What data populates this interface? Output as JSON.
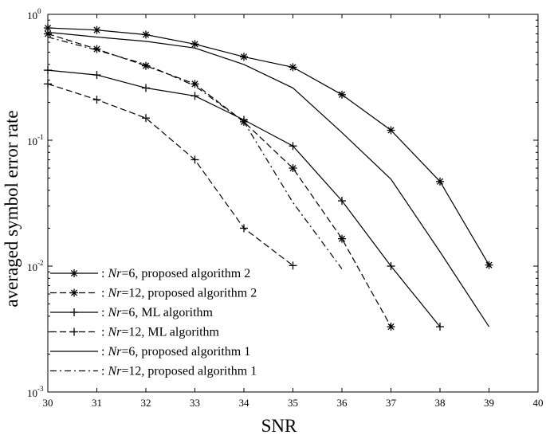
{
  "chart_data": {
    "type": "line",
    "title": "",
    "xlabel": "SNR",
    "ylabel": "averaged symbol error rate",
    "xlim": [
      30,
      40
    ],
    "ylim": [
      0.001,
      1
    ],
    "yscale": "log",
    "x_ticks": [
      "30",
      "31",
      "32",
      "33",
      "34",
      "35",
      "36",
      "37",
      "38",
      "39",
      "40"
    ],
    "y_ticks": [
      {
        "base": "10",
        "exp": "0",
        "value": 1
      },
      {
        "base": "10",
        "exp": "-1",
        "value": 0.1
      },
      {
        "base": "10",
        "exp": "-2",
        "value": 0.01
      },
      {
        "base": "10",
        "exp": "-3",
        "value": 0.001
      }
    ],
    "grid": false,
    "legend_position": "bottom-left",
    "series": [
      {
        "legend_prefix": ": ",
        "legend_italic": "Nr",
        "legend_suffix": "=6, proposed algorithm 2",
        "line_style": "solid",
        "marker": "asterisk",
        "color": "#000000",
        "x": [
          30,
          31,
          32,
          33,
          34,
          35,
          36,
          37,
          38,
          39
        ],
        "values": [
          0.78,
          0.75,
          0.69,
          0.58,
          0.46,
          0.38,
          0.23,
          0.12,
          0.047,
          0.0102
        ]
      },
      {
        "legend_prefix": ": ",
        "legend_italic": "Nr",
        "legend_suffix": "=12, proposed algorithm 2",
        "line_style": "dashed",
        "marker": "asterisk",
        "color": "#000000",
        "x": [
          30,
          31,
          32,
          33,
          34,
          35,
          36,
          37
        ],
        "values": [
          0.7,
          0.53,
          0.39,
          0.28,
          0.14,
          0.06,
          0.0165,
          0.0033
        ]
      },
      {
        "legend_prefix": ": ",
        "legend_italic": "Nr",
        "legend_suffix": "=6, ML algorithm",
        "line_style": "solid",
        "marker": "plus",
        "color": "#000000",
        "x": [
          30,
          31,
          32,
          33,
          34,
          35,
          36,
          37,
          38
        ],
        "values": [
          0.36,
          0.33,
          0.26,
          0.225,
          0.145,
          0.09,
          0.033,
          0.01,
          0.0033
        ]
      },
      {
        "legend_prefix": ": ",
        "legend_italic": "Nr",
        "legend_suffix": "=12, ML algorithm",
        "line_style": "dashed",
        "marker": "plus",
        "color": "#000000",
        "x": [
          30,
          31,
          32,
          33,
          34,
          35
        ],
        "values": [
          0.28,
          0.21,
          0.15,
          0.07,
          0.02,
          0.0101
        ]
      },
      {
        "legend_prefix": ": ",
        "legend_italic": "Nr",
        "legend_suffix": "=6, proposed algorithm 1",
        "line_style": "solid",
        "marker": "none",
        "color": "#000000",
        "x": [
          30,
          31,
          32,
          33,
          34,
          35,
          36,
          37,
          38,
          39
        ],
        "values": [
          0.72,
          0.66,
          0.61,
          0.54,
          0.4,
          0.26,
          0.115,
          0.049,
          0.013,
          0.0033
        ]
      },
      {
        "legend_prefix": ": ",
        "legend_italic": "Nr",
        "legend_suffix": "=12, proposed algorithm 1",
        "line_style": "dashdot",
        "marker": "none",
        "color": "#000000",
        "x": [
          30,
          31,
          32,
          33,
          34,
          35,
          36
        ],
        "values": [
          0.66,
          0.52,
          0.4,
          0.27,
          0.14,
          0.032,
          0.0095
        ]
      }
    ]
  }
}
